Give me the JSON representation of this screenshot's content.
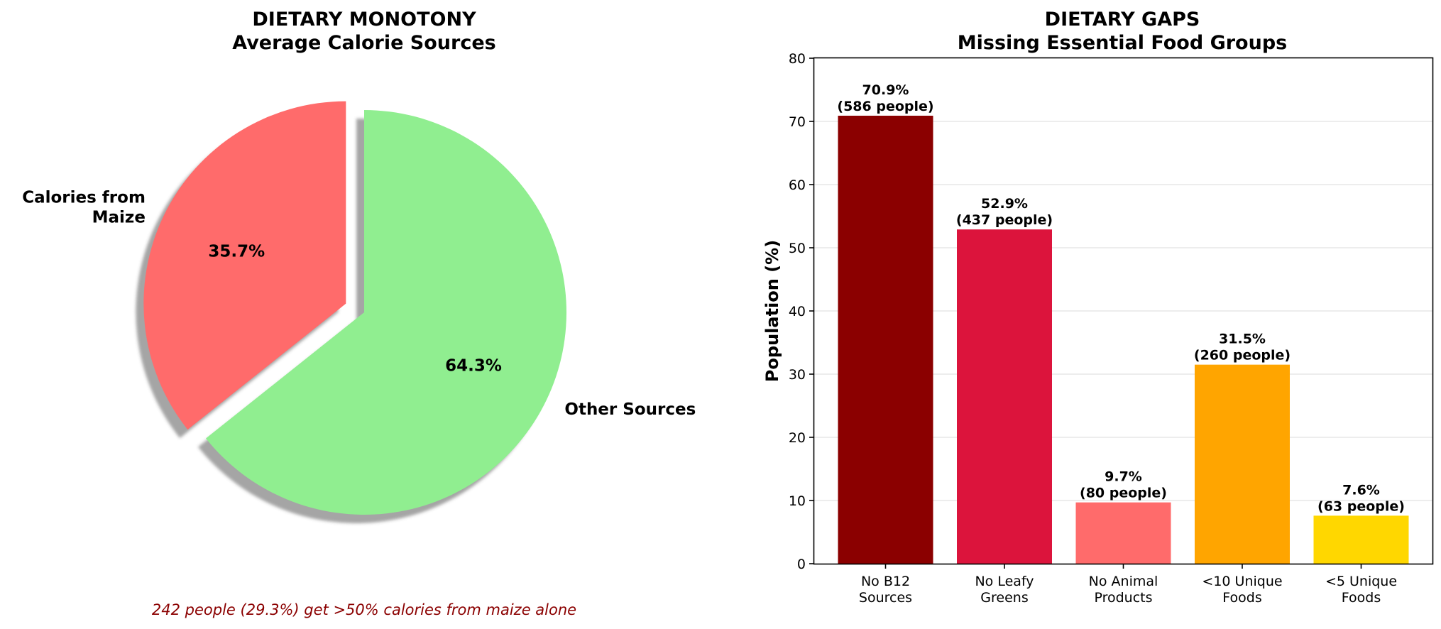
{
  "chart_data": [
    {
      "type": "pie",
      "title": "DIETARY MONOTONY",
      "subtitle": "Average Calorie Sources",
      "labels": [
        "Calories from\nMaize",
        "Other Sources"
      ],
      "values": [
        35.7,
        64.3
      ],
      "autopct": [
        "35.7%",
        "64.3%"
      ],
      "colors": [
        "#ff6b6b",
        "#90ee90"
      ],
      "explode": [
        0.1,
        0
      ],
      "shadow": true,
      "start_angle": 90,
      "footnote": "242 people (29.3%) get >50% calories from maize alone",
      "footnote_color": "#8b0000"
    },
    {
      "type": "bar",
      "title": "DIETARY GAPS",
      "subtitle": "Missing Essential Food Groups",
      "categories": [
        "No B12\nSources",
        "No Leafy\nGreens",
        "No Animal\nProducts",
        "<10 Unique\nFoods",
        "<5 Unique\nFoods"
      ],
      "values": [
        70.9,
        52.9,
        9.7,
        31.5,
        7.6
      ],
      "data_labels": [
        "70.9%\n(586 people)",
        "52.9%\n(437 people)",
        "9.7%\n(80 people)",
        "31.5%\n(260 people)",
        "7.6%\n(63 people)"
      ],
      "colors": [
        "#8b0000",
        "#dc143c",
        "#ff6b6b",
        "#ffa500",
        "#ffd700"
      ],
      "xlabel": "",
      "ylabel": "Population (%)",
      "ylim": [
        0,
        80
      ],
      "yticks": [
        0,
        10,
        20,
        30,
        40,
        50,
        60,
        70,
        80
      ],
      "grid": "y"
    }
  ]
}
